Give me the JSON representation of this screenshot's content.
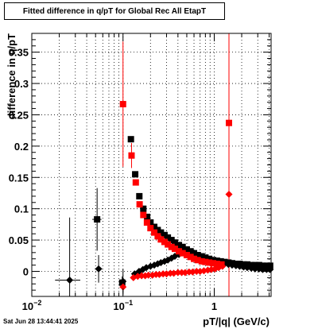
{
  "chart_data": {
    "type": "scatter",
    "title": "Fitted difference in q/pT for Global Rec All EtapT",
    "xlabel": "pT/|q| (GeV/c)",
    "ylabel": "difference in q/pT",
    "x_scale": "log",
    "xlim": [
      0.01,
      4.2
    ],
    "ylim": [
      -0.04,
      0.38
    ],
    "x_ticks": [
      {
        "value": 0.01,
        "label": "10^-2"
      },
      {
        "value": 0.1,
        "label": "10^-1"
      },
      {
        "value": 1,
        "label": "1"
      }
    ],
    "y_ticks": [
      0,
      0.05,
      0.1,
      0.15,
      0.2,
      0.25,
      0.3,
      0.35
    ],
    "grid": true,
    "vertical_line": {
      "x": 1.45,
      "color": "#ff0000"
    },
    "series": [
      {
        "color": "#000000",
        "marker": "square",
        "points": [
          {
            "x": 0.052,
            "y": 0.083,
            "yerr": 0.05,
            "xerr": 0.006
          },
          {
            "x": 0.098,
            "y": -0.018,
            "yerr": 0.01,
            "xerr": 0.004
          },
          {
            "x": 0.122,
            "y": 0.211
          },
          {
            "x": 0.136,
            "y": 0.155
          },
          {
            "x": 0.151,
            "y": 0.12
          },
          {
            "x": 0.167,
            "y": 0.1
          },
          {
            "x": 0.184,
            "y": 0.087
          },
          {
            "x": 0.2,
            "y": 0.078
          },
          {
            "x": 0.22,
            "y": 0.071
          },
          {
            "x": 0.24,
            "y": 0.066
          },
          {
            "x": 0.26,
            "y": 0.062
          },
          {
            "x": 0.285,
            "y": 0.058
          },
          {
            "x": 0.31,
            "y": 0.054
          },
          {
            "x": 0.34,
            "y": 0.05
          },
          {
            "x": 0.37,
            "y": 0.046
          },
          {
            "x": 0.41,
            "y": 0.042
          },
          {
            "x": 0.45,
            "y": 0.039
          },
          {
            "x": 0.5,
            "y": 0.035
          },
          {
            "x": 0.55,
            "y": 0.032
          },
          {
            "x": 0.6,
            "y": 0.029
          },
          {
            "x": 0.66,
            "y": 0.026
          },
          {
            "x": 0.73,
            "y": 0.024
          },
          {
            "x": 0.8,
            "y": 0.022
          },
          {
            "x": 0.88,
            "y": 0.02
          },
          {
            "x": 0.97,
            "y": 0.018
          },
          {
            "x": 1.07,
            "y": 0.017
          },
          {
            "x": 1.18,
            "y": 0.016
          },
          {
            "x": 1.3,
            "y": 0.015
          },
          {
            "x": 1.43,
            "y": 0.014
          },
          {
            "x": 1.57,
            "y": 0.013
          },
          {
            "x": 1.73,
            "y": 0.012
          },
          {
            "x": 1.9,
            "y": 0.012
          },
          {
            "x": 2.1,
            "y": 0.011
          },
          {
            "x": 2.3,
            "y": 0.011
          },
          {
            "x": 2.55,
            "y": 0.01
          },
          {
            "x": 2.8,
            "y": 0.01
          },
          {
            "x": 3.1,
            "y": 0.01
          },
          {
            "x": 3.4,
            "y": 0.009
          },
          {
            "x": 3.75,
            "y": 0.009
          },
          {
            "x": 4.1,
            "y": 0.009
          }
        ]
      },
      {
        "color": "#000000",
        "marker": "diamond",
        "points": [
          {
            "x": 0.026,
            "y": -0.014,
            "yerr": 0.1,
            "xerr": 0.008
          },
          {
            "x": 0.054,
            "y": 0.004,
            "yerr": 0.022,
            "xerr": 0.005
          },
          {
            "x": 0.1,
            "y": -0.016,
            "yerr": 0.02,
            "xerr": 0.004
          },
          {
            "x": 0.134,
            "y": -0.004
          },
          {
            "x": 0.15,
            "y": 0.0
          },
          {
            "x": 0.165,
            "y": 0.003
          },
          {
            "x": 0.18,
            "y": 0.006
          },
          {
            "x": 0.2,
            "y": 0.008
          },
          {
            "x": 0.22,
            "y": 0.01
          },
          {
            "x": 0.24,
            "y": 0.012
          },
          {
            "x": 0.26,
            "y": 0.014
          },
          {
            "x": 0.285,
            "y": 0.016
          },
          {
            "x": 0.31,
            "y": 0.018
          },
          {
            "x": 0.34,
            "y": 0.021
          },
          {
            "x": 0.37,
            "y": 0.024
          },
          {
            "x": 0.41,
            "y": 0.027
          },
          {
            "x": 0.45,
            "y": 0.03
          },
          {
            "x": 0.5,
            "y": 0.028
          },
          {
            "x": 0.55,
            "y": 0.025
          },
          {
            "x": 0.6,
            "y": 0.022
          },
          {
            "x": 0.66,
            "y": 0.02
          },
          {
            "x": 0.73,
            "y": 0.018
          },
          {
            "x": 0.8,
            "y": 0.017
          },
          {
            "x": 0.88,
            "y": 0.016
          },
          {
            "x": 0.97,
            "y": 0.015
          },
          {
            "x": 1.07,
            "y": 0.014
          },
          {
            "x": 1.18,
            "y": 0.013
          },
          {
            "x": 1.3,
            "y": 0.012
          },
          {
            "x": 1.43,
            "y": 0.011
          },
          {
            "x": 1.57,
            "y": 0.01
          },
          {
            "x": 1.73,
            "y": 0.009
          },
          {
            "x": 1.9,
            "y": 0.008
          },
          {
            "x": 2.1,
            "y": 0.007
          },
          {
            "x": 2.3,
            "y": 0.006
          },
          {
            "x": 2.55,
            "y": 0.005
          },
          {
            "x": 2.8,
            "y": 0.004
          },
          {
            "x": 3.1,
            "y": 0.004
          },
          {
            "x": 3.4,
            "y": 0.003
          },
          {
            "x": 3.75,
            "y": 0.003
          },
          {
            "x": 4.1,
            "y": 0.003
          }
        ]
      },
      {
        "color": "#ff0000",
        "marker": "square",
        "points": [
          {
            "x": 0.1,
            "y": 0.267,
            "yerr": 0.1
          },
          {
            "x": 0.124,
            "y": 0.185,
            "yerr": 0.02
          },
          {
            "x": 0.138,
            "y": 0.142
          },
          {
            "x": 0.152,
            "y": 0.107
          },
          {
            "x": 0.167,
            "y": 0.09
          },
          {
            "x": 0.183,
            "y": 0.078
          },
          {
            "x": 0.2,
            "y": 0.069
          },
          {
            "x": 0.22,
            "y": 0.062
          },
          {
            "x": 0.24,
            "y": 0.056
          },
          {
            "x": 0.26,
            "y": 0.051
          },
          {
            "x": 0.285,
            "y": 0.047
          },
          {
            "x": 0.31,
            "y": 0.043
          },
          {
            "x": 0.34,
            "y": 0.039
          },
          {
            "x": 0.37,
            "y": 0.036
          },
          {
            "x": 0.41,
            "y": 0.032
          },
          {
            "x": 0.45,
            "y": 0.029
          },
          {
            "x": 0.5,
            "y": 0.026
          },
          {
            "x": 0.55,
            "y": 0.023
          },
          {
            "x": 0.6,
            "y": 0.02
          },
          {
            "x": 0.66,
            "y": 0.018
          },
          {
            "x": 0.73,
            "y": 0.016
          },
          {
            "x": 0.8,
            "y": 0.015
          },
          {
            "x": 0.88,
            "y": 0.014
          },
          {
            "x": 0.97,
            "y": 0.013
          },
          {
            "x": 1.07,
            "y": 0.012
          },
          {
            "x": 1.2,
            "y": 0.011
          },
          {
            "x": 1.45,
            "y": 0.237,
            "yerr": 0.0
          }
        ]
      },
      {
        "color": "#ff0000",
        "marker": "diamond",
        "points": [
          {
            "x": 0.1,
            "y": -0.025
          },
          {
            "x": 0.13,
            "y": -0.01
          },
          {
            "x": 0.145,
            "y": -0.008
          },
          {
            "x": 0.16,
            "y": -0.007
          },
          {
            "x": 0.175,
            "y": -0.007
          },
          {
            "x": 0.19,
            "y": -0.006
          },
          {
            "x": 0.21,
            "y": -0.006
          },
          {
            "x": 0.23,
            "y": -0.005
          },
          {
            "x": 0.25,
            "y": -0.005
          },
          {
            "x": 0.275,
            "y": -0.004
          },
          {
            "x": 0.3,
            "y": -0.004
          },
          {
            "x": 0.33,
            "y": -0.003
          },
          {
            "x": 0.36,
            "y": -0.003
          },
          {
            "x": 0.4,
            "y": -0.002
          },
          {
            "x": 0.44,
            "y": -0.002
          },
          {
            "x": 0.48,
            "y": -0.002
          },
          {
            "x": 0.53,
            "y": -0.001
          },
          {
            "x": 0.58,
            "y": -0.001
          },
          {
            "x": 0.64,
            "y": 0.0
          },
          {
            "x": 0.7,
            "y": 0.0
          },
          {
            "x": 0.77,
            "y": 0.001
          },
          {
            "x": 0.85,
            "y": 0.002
          },
          {
            "x": 0.93,
            "y": 0.003
          },
          {
            "x": 1.02,
            "y": 0.004
          },
          {
            "x": 1.12,
            "y": 0.006
          },
          {
            "x": 1.23,
            "y": 0.008
          },
          {
            "x": 1.45,
            "y": 0.123
          }
        ]
      }
    ]
  },
  "timestamp": "Sat Jun 28 13:44:41 2025"
}
